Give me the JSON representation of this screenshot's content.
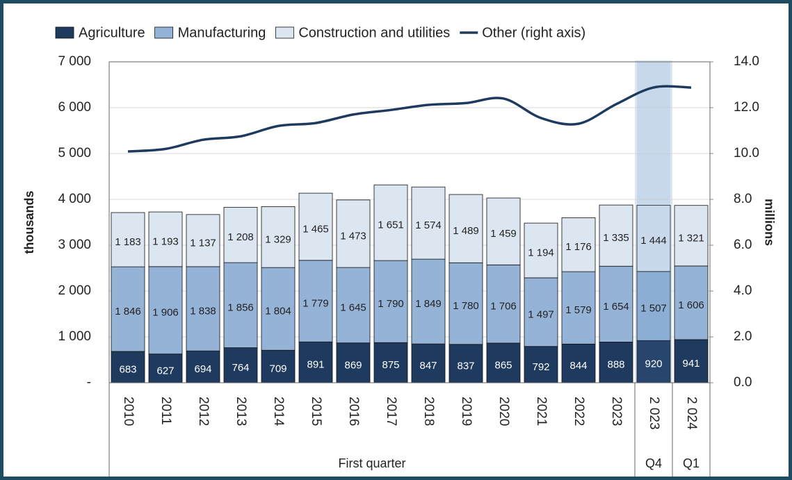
{
  "chart_data": {
    "type": "bar",
    "categories": [
      "2010",
      "2011",
      "2012",
      "2013",
      "2014",
      "2015",
      "2016",
      "2017",
      "2018",
      "2019",
      "2020",
      "2021",
      "2022",
      "2023",
      "2 023",
      "2 024"
    ],
    "groups": [
      {
        "label": "First quarter",
        "span": 14
      },
      {
        "label": "Q4",
        "span": 1
      },
      {
        "label": "Q1",
        "span": 1
      }
    ],
    "highlight_group": 1,
    "series": [
      {
        "name": "Agriculture",
        "color": "#1f3a5f",
        "label_color": "#ffffff",
        "values": [
          683,
          627,
          694,
          764,
          709,
          891,
          869,
          875,
          847,
          837,
          865,
          792,
          844,
          888,
          920,
          941
        ]
      },
      {
        "name": "Manufacturing",
        "color": "#95b3d7",
        "label_color": "#222222",
        "values": [
          1846,
          1906,
          1838,
          1856,
          1804,
          1779,
          1645,
          1790,
          1849,
          1780,
          1706,
          1497,
          1579,
          1654,
          1507,
          1606
        ],
        "value_labels": [
          "1 846",
          "1 906",
          "1 838",
          "1 856",
          "1 804",
          "1 779",
          "1 645",
          "1 790",
          "1 849",
          "1 780",
          "1 706",
          "1 497",
          "1 579",
          "1 654",
          "1 507",
          "1 606"
        ]
      },
      {
        "name": "Construction and utilities",
        "color": "#dce6f1",
        "label_color": "#222222",
        "values": [
          1183,
          1193,
          1137,
          1208,
          1329,
          1465,
          1473,
          1651,
          1574,
          1489,
          1459,
          1194,
          1176,
          1335,
          1444,
          1321
        ],
        "value_labels": [
          "1 183",
          "1 193",
          "1 137",
          "1 208",
          "1 329",
          "1 465",
          "1 473",
          "1 651",
          "1 574",
          "1 489",
          "1 459",
          "1 194",
          "1 176",
          "1 335",
          "1 444",
          "1 321"
        ]
      },
      {
        "name": "Other (right axis)",
        "type": "line",
        "axis": "y2",
        "color": "#1f3a5f",
        "values": [
          10.09,
          10.2,
          10.6,
          10.75,
          11.2,
          11.33,
          11.7,
          11.9,
          12.12,
          12.2,
          12.4,
          11.55,
          11.3,
          12.15,
          12.88,
          12.88
        ]
      }
    ],
    "ylabel": "thousands",
    "y2label": "millions",
    "ylim": [
      0,
      7000
    ],
    "yticks": [
      {
        "value": 0,
        "label": "-"
      },
      {
        "value": 1000,
        "label": "1 000"
      },
      {
        "value": 2000,
        "label": "2 000"
      },
      {
        "value": 3000,
        "label": "3 000"
      },
      {
        "value": 4000,
        "label": "4 000"
      },
      {
        "value": 5000,
        "label": "5 000"
      },
      {
        "value": 6000,
        "label": "6 000"
      },
      {
        "value": 7000,
        "label": "7 000"
      }
    ],
    "y2lim": [
      0,
      14
    ],
    "y2ticks": [
      {
        "value": 0,
        "label": "0.0"
      },
      {
        "value": 2,
        "label": "2.0"
      },
      {
        "value": 4,
        "label": "4.0"
      },
      {
        "value": 6,
        "label": "6.0"
      },
      {
        "value": 8,
        "label": "8.0"
      },
      {
        "value": 10,
        "label": "10.0"
      },
      {
        "value": 12,
        "label": "12.0"
      },
      {
        "value": 14,
        "label": "14.0"
      }
    ],
    "grid": true,
    "legend": "top"
  }
}
